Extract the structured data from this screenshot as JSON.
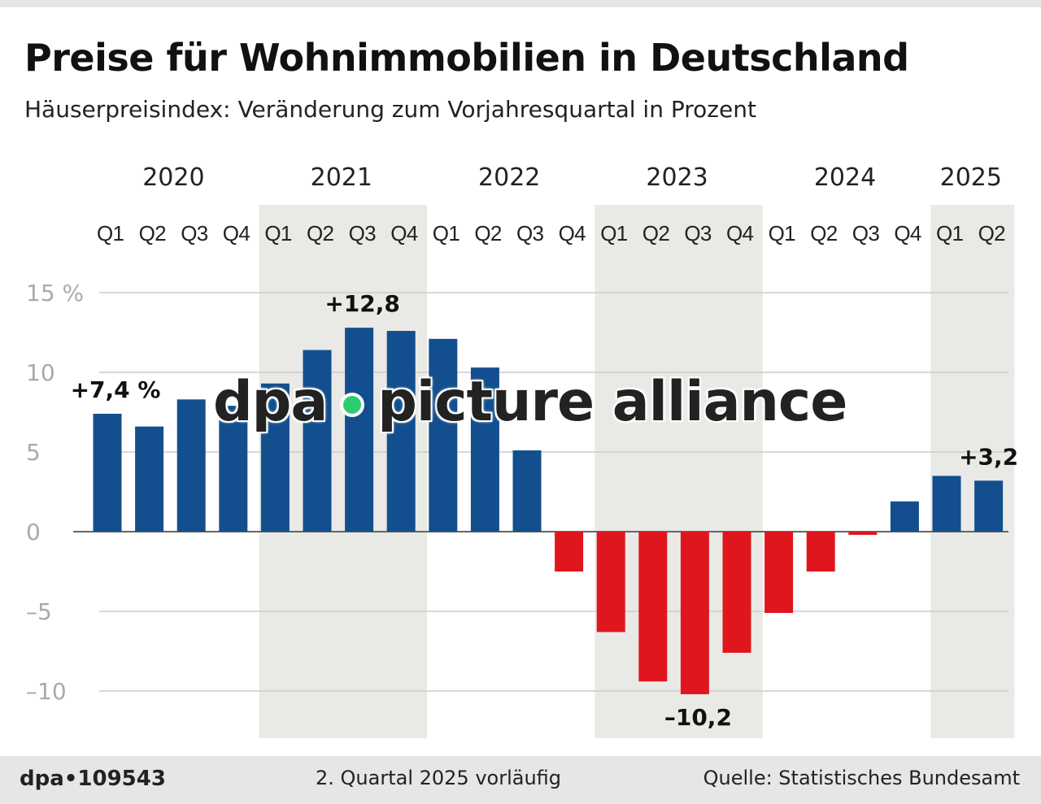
{
  "title": "Preise für Wohnimmobilien in Deutschland",
  "subtitle": "Häuserpreisindex: Veränderung zum Vorjahresquartal in Prozent",
  "footer": {
    "id": "dpa•109543",
    "note": "2. Quartal 2025 vorläufig",
    "source": "Quelle: Statistisches Bundesamt"
  },
  "watermark": "dpa • picture alliance",
  "colors": {
    "positive": "#134f8f",
    "negative": "#e0161f",
    "shade": "#e9eae6"
  },
  "chart_data": {
    "type": "bar",
    "years": [
      "2020",
      "2021",
      "2022",
      "2023",
      "2024",
      "2025"
    ],
    "categories": [
      "Q1",
      "Q2",
      "Q3",
      "Q4",
      "Q1",
      "Q2",
      "Q3",
      "Q4",
      "Q1",
      "Q2",
      "Q3",
      "Q4",
      "Q1",
      "Q2",
      "Q3",
      "Q4",
      "Q1",
      "Q2",
      "Q3",
      "Q4",
      "Q1",
      "Q2"
    ],
    "values": [
      7.4,
      6.6,
      8.3,
      7.9,
      9.3,
      11.4,
      12.8,
      12.6,
      12.1,
      10.3,
      5.1,
      -2.5,
      -6.3,
      -9.4,
      -10.2,
      -7.6,
      -5.1,
      -2.5,
      -0.2,
      1.9,
      3.5,
      3.2
    ],
    "ylim": [
      -13,
      15
    ],
    "yticks": [
      {
        "v": 15,
        "label": "15 %"
      },
      {
        "v": 10,
        "label": "10"
      },
      {
        "v": 5,
        "label": "5"
      },
      {
        "v": 0,
        "label": "0"
      },
      {
        "v": -5,
        "label": "–5"
      },
      {
        "v": -10,
        "label": "–10"
      }
    ],
    "annotations": [
      {
        "index": 0,
        "label": "+7,4 %"
      },
      {
        "index": 6,
        "label": "+12,8"
      },
      {
        "index": 14,
        "label": "–10,2"
      },
      {
        "index": 21,
        "label": "+3,2"
      }
    ],
    "grid": true
  }
}
